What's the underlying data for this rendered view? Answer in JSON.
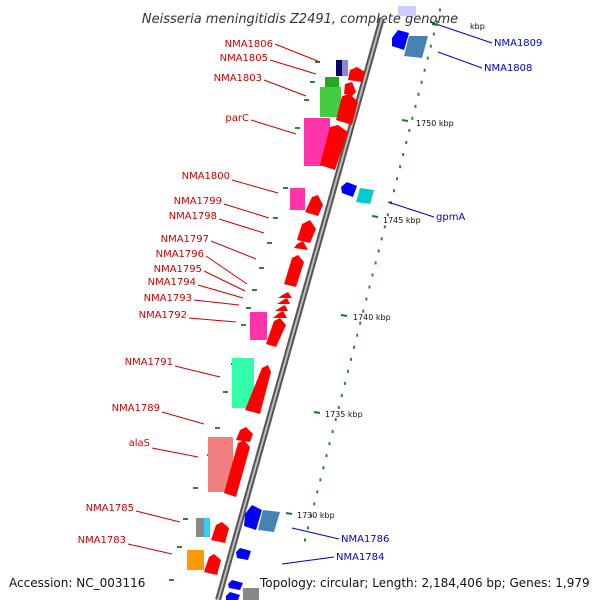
{
  "title": "Neisseria meningitidis Z2491, complete genome",
  "footer": {
    "accession": "Accession: NC_003116",
    "topology": "Topology: circular; Length: 2,184,406 bp; Genes: 1,979"
  },
  "colors": {
    "red_label": "#cc0000",
    "blue_label": "#0000cc",
    "forward_arrow": "#ff0000",
    "reverse_arrow": "#0000ff",
    "backbone": "#888888",
    "tick": "#2a8a2a"
  },
  "ticks": [
    {
      "label": "kbp"
    },
    {
      "label": "1750 kbp"
    },
    {
      "label": "1745 kbp"
    },
    {
      "label": "1740 kbp"
    },
    {
      "label": "1735 kbp"
    },
    {
      "label": "1730 kbp"
    }
  ],
  "labels_left": [
    {
      "name": "NMA1806"
    },
    {
      "name": "NMA1805"
    },
    {
      "name": "NMA1803"
    },
    {
      "name": "parC"
    },
    {
      "name": "NMA1800"
    },
    {
      "name": "NMA1799"
    },
    {
      "name": "NMA1798"
    },
    {
      "name": "NMA1797"
    },
    {
      "name": "NMA1796"
    },
    {
      "name": "NMA1795"
    },
    {
      "name": "NMA1794"
    },
    {
      "name": "NMA1793"
    },
    {
      "name": "NMA1792"
    },
    {
      "name": "NMA1791"
    },
    {
      "name": "NMA1789"
    },
    {
      "name": "alaS"
    },
    {
      "name": "NMA1785"
    },
    {
      "name": "NMA1783"
    }
  ],
  "labels_right": [
    {
      "name": "NMA1809"
    },
    {
      "name": "NMA1808"
    },
    {
      "name": "gpmA"
    },
    {
      "name": "NMA1786"
    },
    {
      "name": "NMA1784"
    }
  ]
}
